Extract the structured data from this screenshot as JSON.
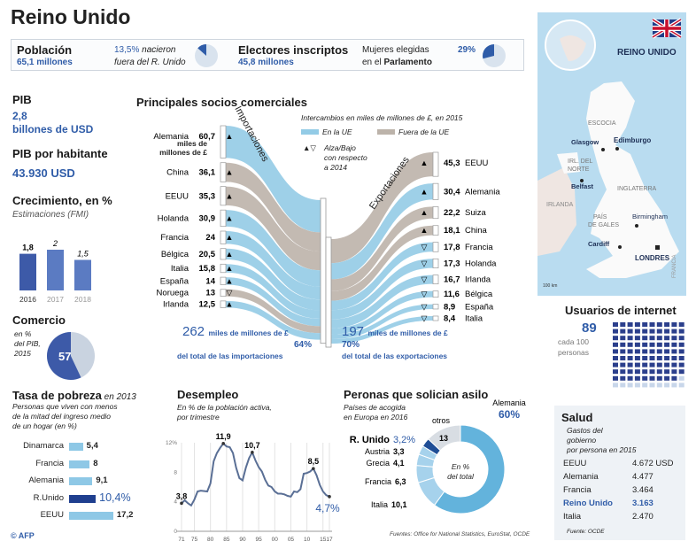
{
  "title": "Reino Unido",
  "top": {
    "poblacion_label": "Población",
    "poblacion_value": "65,1 millones",
    "born_pct": "13,5%",
    "born_text1": " nacieron",
    "born_text2": "fuera del R. Unido",
    "born_fraction": 0.135,
    "electores_label": "Electores inscriptos",
    "electores_value": "45,8 millones",
    "mujeres_text1": "Mujeres elegidas",
    "mujeres_text2": "en el ",
    "mujeres_bold": "Parlamento",
    "mujeres_pct": "29%",
    "mujeres_fraction": 0.29
  },
  "left": {
    "pib_label": "PIB",
    "pib_value": "2,8",
    "pib_unit": "billones de USD",
    "pibh_label": "PIB por habitante",
    "pibh_value": "43.930 USD",
    "crec_label": "Crecimiento, en %",
    "crec_sub": "Estimaciones (FMI)",
    "comercio_label": "Comercio",
    "comercio_sub1": "en %",
    "comercio_sub2": "del PIB,",
    "comercio_sub3": "2015",
    "comercio_value": "57"
  },
  "trade": {
    "title": "Principales socios comerciales",
    "subtitle": "Intercambios en miles de millones de £, en 2015",
    "legend_ue": "En la UE",
    "legend_fuera": "Fuera de la UE",
    "legend_trend1": "Alza/Bajo",
    "legend_trend2": "con respecto",
    "legend_trend3": "a 2014",
    "imports_label": "Importaciones",
    "exports_label": "Exportaciones",
    "unit_note1": "miles de",
    "unit_note2": "millones de £",
    "imports_total": "262",
    "exports_total": "197",
    "total_unit": "miles de millones de £",
    "imports_pct": "64%",
    "exports_pct": "70%",
    "imports_pct_text": "del total de las importaciones",
    "exports_pct_text": "del total de las exportaciones",
    "colors": {
      "ue": "#93cbe6",
      "fuera": "#bcb3aa"
    }
  },
  "map": {
    "country": "REINO UNIDO",
    "labels": [
      "ESCOCIA",
      "Glasgow",
      "Edimburgo",
      "IRL. DEL",
      "NORTE",
      "Belfast",
      "INGLATERRA",
      "IRLANDA",
      "PAÍS",
      "DE GALES",
      "Birmingham",
      "Cardiff",
      "LONDRES",
      "FRANCIA",
      "100 km"
    ]
  },
  "internet": {
    "title": "Usuarios de internet",
    "value": "89",
    "sub1": "cada 100",
    "sub2": "personas",
    "filled": 89,
    "total": 100
  },
  "pobreza": {
    "title": "Tasa de pobreza",
    "title_suffix": " en 2013",
    "sub1": "Personas que viven con menos",
    "sub2": "de la mitad del ingreso medio",
    "sub3": "de un hogar (en %)"
  },
  "desempleo": {
    "title": "Desempleo",
    "sub1": "En % de la población activa,",
    "sub2": "por trimestre"
  },
  "asilo": {
    "title": "Peronas que solician asilo",
    "sub1": "Países de acogida",
    "sub2": "en Europa en 2016",
    "center1": "En %",
    "center2": "del total"
  },
  "salud": {
    "title": "Salud",
    "sub1": "Gastos del",
    "sub2": "gobierno",
    "sub3": "por persona en 2015",
    "rows": [
      {
        "c": "EEUU",
        "v": "4.672 USD"
      },
      {
        "c": "Alemania",
        "v": "4.477"
      },
      {
        "c": "Francia",
        "v": "3.464"
      },
      {
        "c": "Reino Unido",
        "v": "3.163",
        "hl": true
      },
      {
        "c": "Italia",
        "v": "2.470"
      }
    ],
    "source": "Fuente: OCDE"
  },
  "source": "Fuentes: Office for National Statistics, EuroStat, OCDE",
  "credit": "© AFP",
  "chart_data": [
    {
      "type": "bar",
      "title": "Crecimiento, en %",
      "categories": [
        "2016",
        "2017",
        "2018"
      ],
      "values": [
        1.8,
        2,
        1.5
      ],
      "labels": [
        "1,8",
        "2",
        "1,5"
      ]
    },
    {
      "type": "pie",
      "title": "Comercio en % del PIB, 2015",
      "values": [
        57,
        43
      ]
    },
    {
      "type": "sankey",
      "title": "Importaciones",
      "unit": "miles de millones de £",
      "items": [
        {
          "name": "Alemania",
          "value": 60.7,
          "label": "60,7",
          "ue": true,
          "trend": "up"
        },
        {
          "name": "China",
          "value": 36.1,
          "label": "36,1",
          "ue": false,
          "trend": "up"
        },
        {
          "name": "EEUU",
          "value": 35.3,
          "label": "35,3",
          "ue": false,
          "trend": "up"
        },
        {
          "name": "Holanda",
          "value": 30.9,
          "label": "30,9",
          "ue": true,
          "trend": "up"
        },
        {
          "name": "Francia",
          "value": 24,
          "label": "24",
          "ue": true,
          "trend": "up"
        },
        {
          "name": "Bélgica",
          "value": 20.5,
          "label": "20,5",
          "ue": true,
          "trend": "up"
        },
        {
          "name": "Italia",
          "value": 15.8,
          "label": "15,8",
          "ue": true,
          "trend": "up"
        },
        {
          "name": "España",
          "value": 14,
          "label": "14",
          "ue": true,
          "trend": "up"
        },
        {
          "name": "Noruega",
          "value": 13,
          "label": "13",
          "ue": false,
          "trend": "down"
        },
        {
          "name": "Irlanda",
          "value": 12.5,
          "label": "12,5",
          "ue": true,
          "trend": "up"
        }
      ]
    },
    {
      "type": "sankey",
      "title": "Exportaciones",
      "unit": "miles de millones de £",
      "items": [
        {
          "name": "EEUU",
          "value": 45.3,
          "label": "45,3",
          "ue": false,
          "trend": "up"
        },
        {
          "name": "Alemania",
          "value": 30.4,
          "label": "30,4",
          "ue": true,
          "trend": "up"
        },
        {
          "name": "Suiza",
          "value": 22.2,
          "label": "22,2",
          "ue": false,
          "trend": "up"
        },
        {
          "name": "China",
          "value": 18.1,
          "label": "18,1",
          "ue": false,
          "trend": "up"
        },
        {
          "name": "Francia",
          "value": 17.8,
          "label": "17,8",
          "ue": true,
          "trend": "down"
        },
        {
          "name": "Holanda",
          "value": 17.3,
          "label": "17,3",
          "ue": true,
          "trend": "down"
        },
        {
          "name": "Irlanda",
          "value": 16.7,
          "label": "16,7",
          "ue": true,
          "trend": "down"
        },
        {
          "name": "Bélgica",
          "value": 11.6,
          "label": "11,6",
          "ue": true,
          "trend": "down"
        },
        {
          "name": "España",
          "value": 8.9,
          "label": "8,9",
          "ue": true,
          "trend": "down"
        },
        {
          "name": "Italia",
          "value": 8.4,
          "label": "8,4",
          "ue": true,
          "trend": "down"
        }
      ]
    },
    {
      "type": "bar",
      "title": "Tasa de pobreza en 2013",
      "categories": [
        "Dinamarca",
        "Francia",
        "Alemania",
        "R.Unido",
        "EEUU"
      ],
      "values": [
        5.4,
        8,
        9.1,
        10.4,
        17.2
      ],
      "labels": [
        "5,4",
        "8",
        "9,1",
        "10,4%",
        "17,2"
      ],
      "highlight": "R.Unido"
    },
    {
      "type": "line",
      "title": "Desempleo",
      "xlabel": "",
      "ylabel": "%",
      "xlim": [
        1971,
        2017
      ],
      "ylim": [
        0,
        12
      ],
      "yticks": [
        "0",
        "4",
        "8",
        "12%"
      ],
      "ytick_values": [
        0,
        4,
        8,
        12
      ],
      "xticks": [
        "71",
        "75",
        "80",
        "85",
        "90",
        "95",
        "00",
        "05",
        "10",
        "15",
        "17"
      ],
      "xtick_values": [
        1971,
        1975,
        1980,
        1985,
        1990,
        1995,
        2000,
        2005,
        2010,
        2015,
        2017
      ],
      "x": [
        1971,
        1972,
        1973,
        1974,
        1975,
        1976,
        1977,
        1979,
        1980,
        1981,
        1982,
        1983,
        1984,
        1985,
        1986,
        1987,
        1988,
        1989,
        1990,
        1991,
        1992,
        1993,
        1994,
        1995,
        1996,
        1997,
        1998,
        1999,
        2000,
        2001,
        2002,
        2003,
        2004,
        2005,
        2006,
        2007,
        2008,
        2009,
        2010,
        2011,
        2012,
        2013,
        2014,
        2015,
        2016,
        2017
      ],
      "y": [
        3.8,
        4.2,
        3.8,
        3.5,
        4.3,
        5.4,
        5.5,
        5.4,
        6.5,
        9.5,
        10.6,
        11.3,
        11.9,
        11.5,
        11.4,
        10.6,
        8.6,
        7.2,
        6.9,
        8.6,
        9.9,
        10.7,
        9.6,
        8.7,
        8.1,
        7.0,
        6.2,
        6.0,
        5.4,
        5.1,
        5.1,
        5.0,
        4.8,
        4.7,
        5.4,
        5.3,
        5.7,
        7.8,
        7.9,
        8.1,
        8.5,
        7.6,
        6.3,
        5.4,
        4.9,
        4.7
      ],
      "annotations": [
        {
          "x": 1971,
          "label": "3,8"
        },
        {
          "x": 1984,
          "label": "11,9"
        },
        {
          "x": 1993,
          "label": "10,7"
        },
        {
          "x": 2012,
          "label": "8,5"
        },
        {
          "x": 2017,
          "label": "4,7%"
        }
      ]
    },
    {
      "type": "pie",
      "title": "Peronas que solician asilo",
      "categories": [
        "Alemania",
        "Italia",
        "Francia",
        "Grecia",
        "Austria",
        "R. Unido",
        "otros"
      ],
      "values": [
        60,
        10.1,
        6.3,
        4.1,
        3.3,
        3.2,
        13
      ],
      "labels": [
        "60%",
        "10,1",
        "6,3",
        "4,1",
        "3,3",
        "3,2%",
        "13"
      ]
    }
  ]
}
